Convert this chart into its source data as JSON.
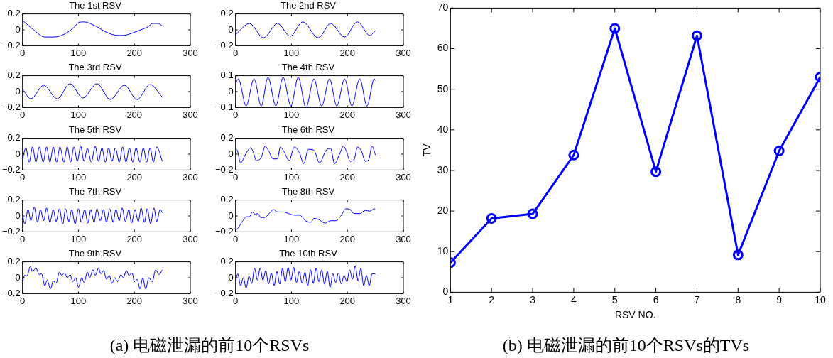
{
  "chart_data": [
    {
      "type": "line",
      "title": "The 1st RSV",
      "color": "#0000ff",
      "marker": "none",
      "xlim": [
        0,
        300
      ],
      "xticks": [
        0,
        100,
        200,
        300
      ],
      "ylim": [
        -0.2,
        0.2
      ],
      "yticks": [
        -0.2,
        0,
        0.2
      ],
      "annotations": [
        "(a) 电磁泄漏的前10个RSVs"
      ],
      "x": [
        0,
        20,
        40,
        55,
        70,
        92,
        100,
        110,
        130,
        150,
        170,
        180,
        200,
        215,
        225,
        232,
        242,
        250
      ],
      "values": [
        0.12,
        0.0,
        -0.09,
        -0.09,
        -0.07,
        0.03,
        0.09,
        0.1,
        0.05,
        -0.03,
        -0.07,
        -0.07,
        -0.03,
        0.01,
        0.04,
        0.08,
        0.08,
        0.05
      ]
    },
    {
      "type": "line",
      "title": "The 2nd RSV",
      "color": "#0000ff",
      "marker": "none",
      "xlim": [
        0,
        300
      ],
      "xticks": [
        0,
        100,
        200,
        300
      ],
      "ylim": [
        -0.2,
        0.2
      ],
      "yticks": [
        -0.2,
        0,
        0.2
      ],
      "x": [
        0,
        25,
        50,
        75,
        98,
        120,
        148,
        170,
        195,
        218,
        240,
        250
      ],
      "values": [
        -0.06,
        0.08,
        -0.1,
        0.08,
        -0.08,
        0.1,
        -0.1,
        0.08,
        -0.09,
        0.1,
        -0.07,
        -0.01
      ]
    },
    {
      "type": "line",
      "title": "The 3rd RSV",
      "color": "#0000ff",
      "marker": "none",
      "xlim": [
        0,
        300
      ],
      "xticks": [
        0,
        100,
        200,
        300
      ],
      "ylim": [
        -0.2,
        0.2
      ],
      "yticks": [
        -0.2,
        0,
        0.2
      ],
      "x": [
        0,
        15,
        38,
        62,
        85,
        108,
        133,
        157,
        182,
        205,
        228,
        250
      ],
      "values": [
        0.03,
        -0.09,
        0.08,
        -0.09,
        0.1,
        -0.08,
        0.1,
        -0.1,
        0.08,
        -0.1,
        0.09,
        -0.07
      ]
    },
    {
      "type": "line",
      "title": "The 4th RSV",
      "color": "#0000ff",
      "marker": "none",
      "xlim": [
        0,
        300
      ],
      "xticks": [
        0,
        100,
        200,
        300
      ],
      "ylim": [
        -0.1,
        0.1
      ],
      "yticks": [
        -0.1,
        0,
        0.1
      ],
      "x": [
        0,
        5,
        19,
        33,
        46,
        58,
        72,
        85,
        99,
        112,
        126,
        140,
        154,
        168,
        181,
        195,
        208,
        222,
        235,
        248,
        250
      ],
      "values": [
        0.05,
        0.08,
        -0.09,
        0.08,
        -0.09,
        0.09,
        -0.09,
        0.09,
        -0.09,
        0.09,
        -0.1,
        0.08,
        -0.09,
        0.08,
        -0.09,
        0.08,
        -0.09,
        0.08,
        -0.09,
        0.08,
        0.07
      ]
    },
    {
      "type": "line",
      "title": "The 5th RSV",
      "color": "#0000ff",
      "marker": "none",
      "xlim": [
        0,
        300
      ],
      "xticks": [
        0,
        100,
        200,
        300
      ],
      "ylim": [
        -0.2,
        0.2
      ],
      "yticks": [
        -0.2,
        0,
        0.2
      ],
      "x": [
        0,
        6,
        12,
        18,
        24,
        30,
        37,
        43,
        49,
        55,
        61,
        67,
        74,
        80,
        86,
        92,
        98,
        104,
        110,
        116,
        123,
        130,
        136,
        142,
        148,
        154,
        160,
        166,
        173,
        179,
        185,
        191,
        197,
        203,
        210,
        216,
        222,
        228,
        234,
        240,
        250
      ],
      "values": [
        -0.07,
        0.08,
        -0.1,
        0.09,
        -0.1,
        0.09,
        -0.1,
        0.09,
        -0.1,
        0.09,
        -0.1,
        0.09,
        -0.1,
        0.09,
        -0.1,
        0.09,
        -0.09,
        0.1,
        -0.09,
        0.07,
        -0.1,
        0.1,
        -0.09,
        0.08,
        -0.1,
        0.08,
        -0.09,
        0.08,
        -0.1,
        0.09,
        -0.1,
        0.08,
        -0.1,
        0.08,
        -0.1,
        0.08,
        -0.1,
        0.08,
        -0.1,
        0.09,
        -0.09
      ]
    },
    {
      "type": "line",
      "title": "The 6th RSV",
      "color": "#0000ff",
      "marker": "none",
      "xlim": [
        0,
        300
      ],
      "xticks": [
        0,
        100,
        200,
        300
      ],
      "ylim": [
        -0.2,
        0.2
      ],
      "yticks": [
        -0.2,
        0,
        0.2
      ],
      "x": [
        0,
        3,
        9,
        18,
        27,
        32,
        37,
        46,
        53,
        60,
        67,
        75,
        80,
        86,
        96,
        105,
        114,
        122,
        130,
        140,
        150,
        162,
        170,
        177,
        186,
        193,
        198,
        205,
        212,
        218,
        225,
        232,
        238,
        244,
        250
      ],
      "values": [
        0.06,
        0.05,
        -0.11,
        0,
        0.08,
        0.02,
        -0.08,
        -0.04,
        0.1,
        0.03,
        -0.06,
        -0.06,
        0.09,
        0.04,
        -0.08,
        0.09,
        0.02,
        -0.12,
        0.06,
        0.05,
        -0.11,
        0.05,
        0.07,
        -0.12,
        0,
        0.1,
        0.04,
        -0.09,
        -0.07,
        0.09,
        0.04,
        -0.09,
        -0.07,
        0.1,
        -0.01
      ]
    },
    {
      "type": "line",
      "title": "The 7th RSV",
      "color": "#0000ff",
      "marker": "none",
      "xlim": [
        0,
        300
      ],
      "xticks": [
        0,
        100,
        200,
        300
      ],
      "ylim": [
        -0.2,
        0.2
      ],
      "yticks": [
        -0.2,
        0,
        0.2
      ],
      "x": [
        0,
        4,
        10,
        15,
        21,
        27,
        32,
        38,
        43,
        49,
        55,
        60,
        66,
        72,
        77,
        83,
        88,
        94,
        100,
        105,
        111,
        117,
        122,
        128,
        133,
        139,
        145,
        150,
        156,
        162,
        167,
        173,
        178,
        184,
        190,
        195,
        201,
        207,
        212,
        218,
        223,
        229,
        235,
        240,
        246,
        250
      ],
      "values": [
        0.02,
        -0.1,
        0.08,
        -0.06,
        0.11,
        -0.08,
        0.08,
        -0.06,
        0.1,
        -0.08,
        0.08,
        -0.07,
        0.09,
        -0.1,
        0.09,
        -0.07,
        0.08,
        -0.1,
        0.09,
        -0.08,
        0.08,
        -0.09,
        0.08,
        -0.08,
        0.09,
        -0.06,
        0.08,
        -0.08,
        0.09,
        -0.08,
        0.08,
        -0.06,
        0.1,
        -0.07,
        0.08,
        -0.09,
        0.08,
        -0.07,
        0.1,
        -0.08,
        0.09,
        -0.1,
        0.1,
        -0.07,
        0.08,
        0.04
      ]
    },
    {
      "type": "line",
      "title": "The 8th RSV",
      "color": "#0000ff",
      "marker": "none",
      "xlim": [
        0,
        300
      ],
      "xticks": [
        0,
        100,
        200,
        300
      ],
      "ylim": [
        -0.2,
        0.2
      ],
      "yticks": [
        -0.2,
        0,
        0.2
      ],
      "x": [
        0,
        5,
        12,
        20,
        25,
        30,
        35,
        40,
        45,
        52,
        60,
        68,
        75,
        85,
        95,
        105,
        115,
        125,
        135,
        140,
        150,
        160,
        170,
        180,
        190,
        197,
        205,
        212,
        222,
        232,
        240,
        248,
        250
      ],
      "values": [
        -0.18,
        -0.15,
        -0.07,
        -0.01,
        -0.01,
        0.05,
        0.02,
        0.03,
        -0.02,
        -0.02,
        0.03,
        0.08,
        0.05,
        0.05,
        0.03,
        0.01,
        0.01,
        -0.06,
        -0.08,
        -0.03,
        -0.05,
        -0.09,
        -0.06,
        -0.06,
        0.02,
        0.09,
        0.08,
        0.03,
        0.03,
        0.07,
        0.06,
        0.09,
        0.08
      ]
    },
    {
      "type": "line",
      "title": "The 9th RSV",
      "color": "#0000ff",
      "marker": "none",
      "xlim": [
        0,
        300
      ],
      "xticks": [
        0,
        100,
        200,
        300
      ],
      "ylim": [
        -0.2,
        0.2
      ],
      "yticks": [
        -0.2,
        0,
        0.2
      ],
      "x": [
        0,
        4,
        8,
        14,
        18,
        24,
        30,
        34,
        40,
        44,
        50,
        55,
        60,
        66,
        70,
        75,
        80,
        85,
        90,
        95,
        100,
        106,
        110,
        116,
        120,
        126,
        130,
        136,
        140,
        145,
        150,
        155,
        160,
        165,
        170,
        176,
        180,
        186,
        190,
        196,
        200,
        205,
        210,
        215,
        220,
        226,
        232,
        238,
        244,
        250
      ],
      "values": [
        -0.05,
        0.03,
        0.02,
        0.14,
        0.08,
        0.12,
        0.04,
        0.05,
        -0.1,
        -0.03,
        -0.14,
        -0.04,
        -0.07,
        0.07,
        0.03,
        0.06,
        0,
        0.04,
        -0.05,
        0,
        -0.12,
        0,
        -0.06,
        0.07,
        0,
        0.1,
        0.03,
        0.12,
        0.05,
        0.09,
        -0.02,
        0.03,
        -0.07,
        0,
        -0.05,
        0.04,
        0,
        0.09,
        0.03,
        0.06,
        -0.05,
        -0.02,
        -0.14,
        0,
        -0.14,
        0,
        -0.05,
        0.1,
        0.04,
        0.1
      ]
    },
    {
      "type": "line",
      "title": "The 10th RSV",
      "color": "#0000ff",
      "marker": "none",
      "xlim": [
        0,
        300
      ],
      "xticks": [
        0,
        100,
        200,
        300
      ],
      "ylim": [
        -0.2,
        0.2
      ],
      "yticks": [
        -0.2,
        0,
        0.2
      ],
      "x": [
        0,
        4,
        9,
        14,
        19,
        24,
        29,
        34,
        39,
        44,
        49,
        54,
        59,
        64,
        69,
        74,
        79,
        84,
        89,
        94,
        99,
        104,
        109,
        114,
        119,
        124,
        129,
        134,
        139,
        144,
        149,
        154,
        159,
        164,
        169,
        174,
        179,
        184,
        189,
        194,
        199,
        204,
        209,
        214,
        219,
        224,
        229,
        234,
        239,
        244,
        250
      ],
      "values": [
        -0.05,
        0.05,
        -0.1,
        0,
        -0.13,
        0.02,
        -0.07,
        0.12,
        -0.03,
        0.12,
        -0.03,
        0.09,
        -0.08,
        0.06,
        -0.1,
        0.08,
        -0.08,
        0.12,
        -0.05,
        0.13,
        -0.03,
        0.13,
        -0.06,
        0.08,
        -0.07,
        0.07,
        -0.1,
        0.1,
        -0.07,
        0.12,
        -0.05,
        0.1,
        -0.08,
        0.08,
        -0.12,
        0.05,
        -0.06,
        0.06,
        -0.08,
        0.03,
        -0.05,
        0.1,
        -0.02,
        0.15,
        -0.04,
        0.12,
        -0.1,
        0.03,
        -0.1,
        0.05,
        0.05
      ]
    },
    {
      "type": "line",
      "xlabel": "RSV NO.",
      "ylabel": "TV",
      "color": "#0000ff",
      "marker": "circle",
      "xlim": [
        1,
        10
      ],
      "xticks": [
        1,
        2,
        3,
        4,
        5,
        6,
        7,
        8,
        9,
        10
      ],
      "ylim": [
        0,
        70
      ],
      "yticks": [
        0,
        10,
        20,
        30,
        40,
        50,
        60,
        70
      ],
      "annotations": [
        "(b) 电磁泄漏的前10个RSVs的TVs"
      ],
      "x": [
        1,
        2,
        3,
        4,
        5,
        6,
        7,
        8,
        9,
        10
      ],
      "values": [
        7.3,
        18.2,
        19.3,
        33.8,
        65,
        29.7,
        63.2,
        9.2,
        34.8,
        53
      ]
    }
  ]
}
